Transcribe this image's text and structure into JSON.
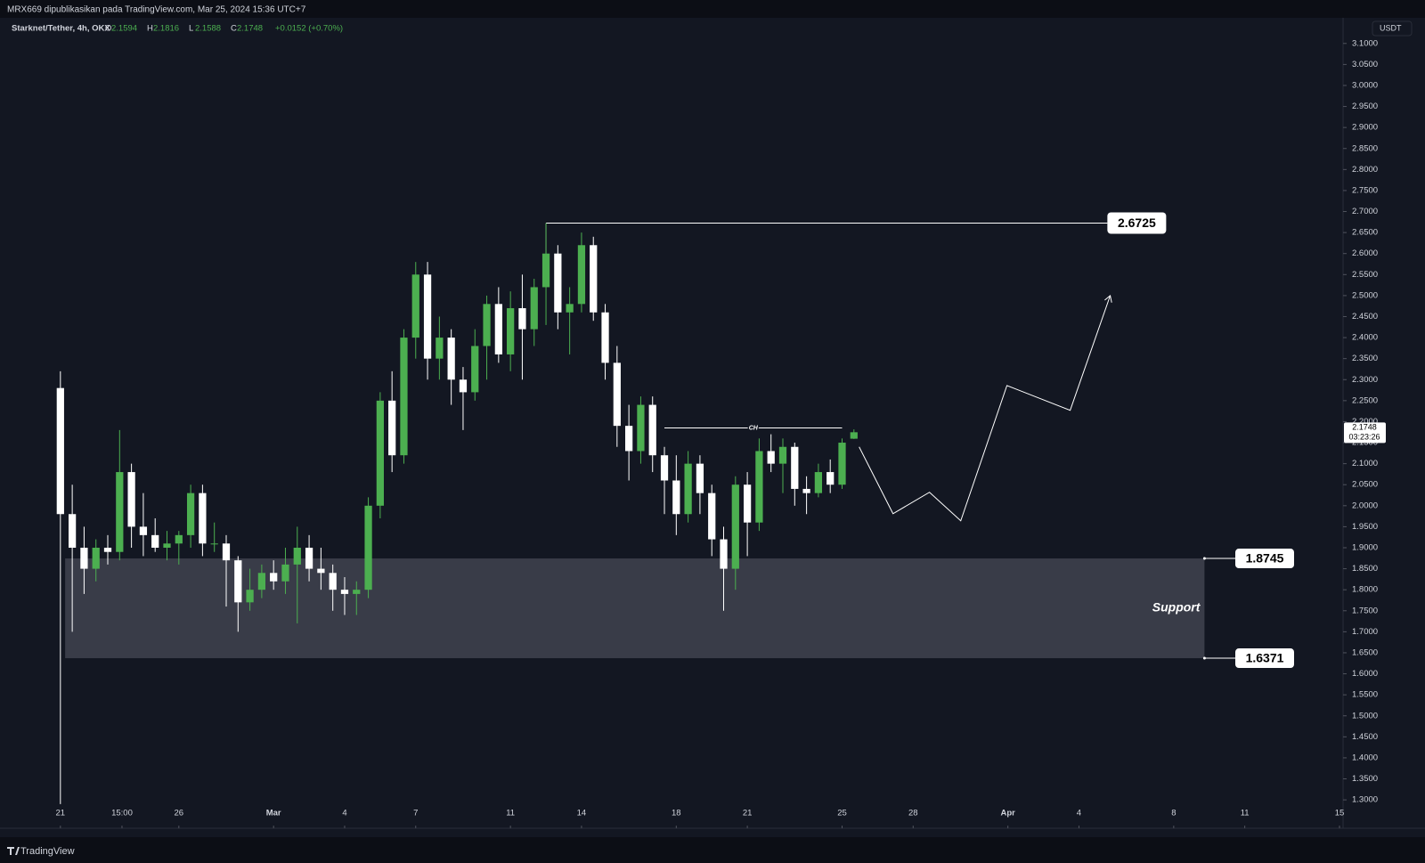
{
  "chart_data": {
    "type": "candlestick",
    "header": "MRX669 dipublikasikan pada TradingView.com, Mar 25, 2024 15:36 UTC+7",
    "symbol": "Starknet/Tether, 4h, OKX",
    "legend": {
      "O": 2.1594,
      "H": 2.1816,
      "L": 2.1588,
      "C": 2.1748,
      "change": "+0.0152 (+0.70%)"
    },
    "currency": "USDT",
    "countdown": "03:23:26",
    "brand": "TradingView",
    "up_color": "#4caf50",
    "down_color": "#ffffff",
    "x": [
      0,
      0.5,
      1,
      1.5,
      2,
      2.5,
      3,
      3.5,
      4,
      4.5,
      5,
      5.5,
      6,
      6.5,
      7,
      7.5,
      8,
      8.5,
      9,
      9.5,
      10,
      10.5,
      11,
      11.5,
      12,
      12.5,
      13,
      13.5,
      14,
      14.5,
      15,
      15.5,
      16,
      16.5,
      17,
      17.5,
      18,
      18.5,
      19,
      19.5,
      20,
      20.5,
      21,
      21.5,
      22,
      22.5,
      23,
      23.5,
      24,
      24.5,
      25,
      25.5,
      26,
      26.5,
      27,
      27.5,
      28,
      28.5,
      29,
      29.5,
      30,
      30.5,
      31,
      31.5,
      32,
      32.5,
      33,
      33.5
    ],
    "ohlc": [
      [
        2.28,
        2.32,
        1.29,
        1.98
      ],
      [
        1.98,
        2.05,
        1.7,
        1.9
      ],
      [
        1.9,
        1.95,
        1.79,
        1.85
      ],
      [
        1.85,
        1.92,
        1.82,
        1.9
      ],
      [
        1.9,
        1.93,
        1.86,
        1.89
      ],
      [
        1.89,
        2.18,
        1.87,
        2.08
      ],
      [
        2.08,
        2.1,
        1.9,
        1.95
      ],
      [
        1.95,
        2.03,
        1.88,
        1.93
      ],
      [
        1.93,
        1.97,
        1.89,
        1.9
      ],
      [
        1.9,
        1.94,
        1.87,
        1.91
      ],
      [
        1.91,
        1.94,
        1.86,
        1.93
      ],
      [
        1.93,
        2.05,
        1.9,
        2.03
      ],
      [
        2.03,
        2.05,
        1.88,
        1.91
      ],
      [
        1.91,
        1.96,
        1.89,
        1.91
      ],
      [
        1.91,
        1.93,
        1.76,
        1.87
      ],
      [
        1.87,
        1.88,
        1.7,
        1.77
      ],
      [
        1.77,
        1.85,
        1.75,
        1.8
      ],
      [
        1.8,
        1.86,
        1.78,
        1.84
      ],
      [
        1.84,
        1.87,
        1.8,
        1.82
      ],
      [
        1.82,
        1.9,
        1.79,
        1.86
      ],
      [
        1.86,
        1.95,
        1.72,
        1.9
      ],
      [
        1.9,
        1.93,
        1.82,
        1.85
      ],
      [
        1.85,
        1.9,
        1.8,
        1.84
      ],
      [
        1.84,
        1.86,
        1.75,
        1.8
      ],
      [
        1.8,
        1.83,
        1.74,
        1.79
      ],
      [
        1.79,
        1.82,
        1.74,
        1.8
      ],
      [
        1.8,
        2.02,
        1.78,
        2.0
      ],
      [
        2.0,
        2.27,
        1.97,
        2.25
      ],
      [
        2.25,
        2.32,
        2.08,
        2.12
      ],
      [
        2.12,
        2.42,
        2.1,
        2.4
      ],
      [
        2.4,
        2.58,
        2.35,
        2.55
      ],
      [
        2.55,
        2.58,
        2.3,
        2.35
      ],
      [
        2.35,
        2.45,
        2.3,
        2.4
      ],
      [
        2.4,
        2.42,
        2.24,
        2.3
      ],
      [
        2.3,
        2.33,
        2.18,
        2.27
      ],
      [
        2.27,
        2.42,
        2.25,
        2.38
      ],
      [
        2.38,
        2.5,
        2.3,
        2.48
      ],
      [
        2.48,
        2.52,
        2.34,
        2.36
      ],
      [
        2.36,
        2.51,
        2.32,
        2.47
      ],
      [
        2.47,
        2.55,
        2.3,
        2.42
      ],
      [
        2.42,
        2.54,
        2.38,
        2.52
      ],
      [
        2.52,
        2.6725,
        2.43,
        2.6
      ],
      [
        2.6,
        2.62,
        2.42,
        2.46
      ],
      [
        2.46,
        2.52,
        2.36,
        2.48
      ],
      [
        2.48,
        2.65,
        2.46,
        2.62
      ],
      [
        2.62,
        2.64,
        2.44,
        2.46
      ],
      [
        2.46,
        2.48,
        2.3,
        2.34
      ],
      [
        2.34,
        2.38,
        2.14,
        2.19
      ],
      [
        2.19,
        2.24,
        2.06,
        2.13
      ],
      [
        2.13,
        2.26,
        2.1,
        2.24
      ],
      [
        2.24,
        2.26,
        2.08,
        2.12
      ],
      [
        2.12,
        2.14,
        1.98,
        2.06
      ],
      [
        2.06,
        2.12,
        1.93,
        1.98
      ],
      [
        1.98,
        2.13,
        1.96,
        2.1
      ],
      [
        2.1,
        2.12,
        1.98,
        2.03
      ],
      [
        2.03,
        2.05,
        1.88,
        1.92
      ],
      [
        1.92,
        1.95,
        1.75,
        1.85
      ],
      [
        1.85,
        2.07,
        1.8,
        2.05
      ],
      [
        2.05,
        2.08,
        1.88,
        1.96
      ],
      [
        1.96,
        2.16,
        1.94,
        2.13
      ],
      [
        2.13,
        2.17,
        2.08,
        2.1
      ],
      [
        2.1,
        2.16,
        2.03,
        2.14
      ],
      [
        2.14,
        2.15,
        2.0,
        2.04
      ],
      [
        2.04,
        2.07,
        1.98,
        2.03
      ],
      [
        2.03,
        2.1,
        2.02,
        2.08
      ],
      [
        2.08,
        2.11,
        2.03,
        2.05
      ],
      [
        2.05,
        2.16,
        2.04,
        2.15
      ],
      [
        2.1594,
        2.1816,
        2.1588,
        2.1748
      ]
    ],
    "xlim": [
      -2.55,
      54.15
    ],
    "xticks": [
      {
        "value": 0,
        "label": "21"
      },
      {
        "value": 2.6,
        "label": "15:00"
      },
      {
        "value": 5,
        "label": "26"
      },
      {
        "value": 9,
        "label": "Mar"
      },
      {
        "value": 12,
        "label": "4"
      },
      {
        "value": 15,
        "label": "7"
      },
      {
        "value": 19,
        "label": "11"
      },
      {
        "value": 22,
        "label": "14"
      },
      {
        "value": 26,
        "label": "18"
      },
      {
        "value": 29,
        "label": "21"
      },
      {
        "value": 33,
        "label": "25"
      },
      {
        "value": 36,
        "label": "28"
      },
      {
        "value": 40,
        "label": "Apr"
      },
      {
        "value": 43,
        "label": "4"
      },
      {
        "value": 47,
        "label": "8"
      },
      {
        "value": 50,
        "label": "11"
      },
      {
        "value": 54,
        "label": "15"
      }
    ],
    "ylim": [
      1.243,
      3.161
    ],
    "yticks": [
      {
        "value": 1.3,
        "label": "1.3000"
      },
      {
        "value": 1.35,
        "label": "1.3500"
      },
      {
        "value": 1.4,
        "label": "1.4000"
      },
      {
        "value": 1.45,
        "label": "1.4500"
      },
      {
        "value": 1.5,
        "label": "1.5000"
      },
      {
        "value": 1.55,
        "label": "1.5500"
      },
      {
        "value": 1.6,
        "label": "1.6000"
      },
      {
        "value": 1.65,
        "label": "1.6500"
      },
      {
        "value": 1.7,
        "label": "1.7000"
      },
      {
        "value": 1.75,
        "label": "1.7500"
      },
      {
        "value": 1.8,
        "label": "1.8000"
      },
      {
        "value": 1.85,
        "label": "1.8500"
      },
      {
        "value": 1.9,
        "label": "1.9000"
      },
      {
        "value": 1.95,
        "label": "1.9500"
      },
      {
        "value": 2.0,
        "label": "2.0000"
      },
      {
        "value": 2.05,
        "label": "2.0500"
      },
      {
        "value": 2.1,
        "label": "2.1000"
      },
      {
        "value": 2.15,
        "label": "2.1500"
      },
      {
        "value": 2.2,
        "label": "2.2000"
      },
      {
        "value": 2.25,
        "label": "2.2500"
      },
      {
        "value": 2.3,
        "label": "2.3000"
      },
      {
        "value": 2.35,
        "label": "2.3500"
      },
      {
        "value": 2.4,
        "label": "2.4000"
      },
      {
        "value": 2.45,
        "label": "2.4500"
      },
      {
        "value": 2.5,
        "label": "2.5000"
      },
      {
        "value": 2.55,
        "label": "2.5500"
      },
      {
        "value": 2.6,
        "label": "2.6000"
      },
      {
        "value": 2.65,
        "label": "2.6500"
      },
      {
        "value": 2.7,
        "label": "2.7000"
      },
      {
        "value": 2.75,
        "label": "2.7500"
      },
      {
        "value": 2.8,
        "label": "2.8000"
      },
      {
        "value": 2.85,
        "label": "2.8500"
      },
      {
        "value": 2.9,
        "label": "2.9000"
      },
      {
        "value": 2.95,
        "label": "2.9500"
      },
      {
        "value": 3.0,
        "label": "3.0000"
      },
      {
        "value": 3.05,
        "label": "3.0500"
      },
      {
        "value": 3.1,
        "label": "3.1000"
      }
    ],
    "resistance": {
      "value": 2.6725,
      "x": [
        20.5,
        44.2
      ]
    },
    "ch": {
      "label": "CH",
      "value": 2.185,
      "x": [
        25.5,
        33.0
      ]
    },
    "support": {
      "label": "Support",
      "low": 1.6371,
      "high": 1.8745,
      "x": [
        0.2,
        48.3
      ]
    },
    "projection": {
      "x": [
        33.72,
        35.15,
        36.69,
        38.01,
        39.96,
        42.63,
        44.32
      ],
      "y": [
        2.14,
        1.981,
        2.032,
        1.964,
        2.286,
        2.227,
        2.5
      ]
    }
  }
}
